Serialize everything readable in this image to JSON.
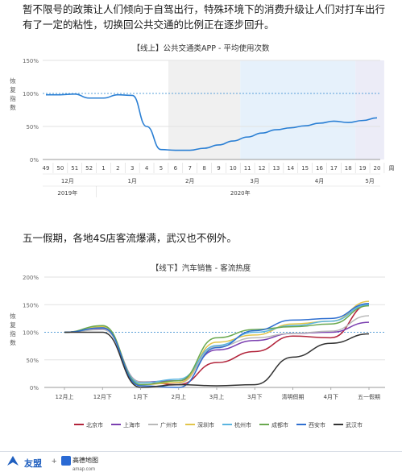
{
  "paragraphs": {
    "p1": "暂不限号的政策让人们倾向于自驾出行，特殊环境下的消费升级让人们对打车出行有了一定的粘性，切换回公共交通的比例正在逐步回升。",
    "p2": "五一假期，各地4S店客流爆满，武汉也不例外。"
  },
  "footer": {
    "brand1": "友盟",
    "plus": "+",
    "brand2": "高德地图",
    "brand2_sub": "amap.com"
  },
  "colors": {
    "line1": "#2a7fd4",
    "band_gray": "#f0f0f0",
    "band_blue": "#e6f1fb",
    "band_purple": "#ececf7",
    "ref_line": "#5aa0d8"
  },
  "chart_data": [
    {
      "type": "line",
      "title": "【线上】公共交通类APP - 平均使用次数",
      "ylabel": "恢复指数",
      "yticks": [
        "0%",
        "50%",
        "100%",
        "150%"
      ],
      "ylim": [
        0,
        150
      ],
      "reference_line": 100,
      "x": [
        "49",
        "50",
        "51",
        "52",
        "1",
        "2",
        "3",
        "4",
        "5",
        "6",
        "7",
        "8",
        "9",
        "10",
        "11",
        "12",
        "13",
        "14",
        "15",
        "16",
        "17",
        "18",
        "19",
        "20"
      ],
      "x_unit": "周",
      "month_labels": [
        {
          "label": "12月",
          "at": 1.5
        },
        {
          "label": "1月",
          "at": 6
        },
        {
          "label": "2月",
          "at": 10
        },
        {
          "label": "3月",
          "at": 14.5
        },
        {
          "label": "4月",
          "at": 19
        },
        {
          "label": "5月",
          "at": 22.5
        }
      ],
      "year_labels": [
        {
          "label": "2019年",
          "at": 1.5
        },
        {
          "label": "2020年",
          "at": 13.5
        }
      ],
      "bands": [
        {
          "from": 8.5,
          "to": 13.5,
          "color": "band_gray"
        },
        {
          "from": 13.5,
          "to": 21.5,
          "color": "band_blue"
        },
        {
          "from": 21.5,
          "to": 23.5,
          "color": "band_purple"
        }
      ],
      "series": [
        {
          "values": [
            98,
            98,
            99,
            93,
            93,
            98,
            97,
            50,
            15,
            14,
            14,
            17,
            22,
            28,
            34,
            40,
            45,
            48,
            51,
            55,
            58,
            56,
            59,
            63
          ]
        }
      ]
    },
    {
      "type": "line",
      "title": "【线下】汽车销售 - 客流热度",
      "ylabel": "恢复指数",
      "yticks": [
        "0%",
        "50%",
        "100%",
        "150%",
        "200%"
      ],
      "ylim": [
        0,
        200
      ],
      "reference_line": 100,
      "categories": [
        "12月上",
        "12月下",
        "1月下",
        "2月上",
        "3月上",
        "3月下",
        "清明假期",
        "4月下",
        "五一假期"
      ],
      "series": [
        {
          "name": "北京市",
          "color": "#b2233a",
          "values": [
            100,
            107,
            10,
            5,
            45,
            65,
            93,
            90,
            150
          ]
        },
        {
          "name": "上海市",
          "color": "#7b3fb0",
          "values": [
            100,
            107,
            10,
            12,
            68,
            85,
            98,
            100,
            118
          ]
        },
        {
          "name": "广州市",
          "color": "#b9b9b9",
          "values": [
            100,
            105,
            10,
            8,
            74,
            90,
            98,
            102,
            130
          ]
        },
        {
          "name": "深圳市",
          "color": "#e2c54a",
          "values": [
            100,
            110,
            5,
            9,
            82,
            95,
            115,
            120,
            156
          ]
        },
        {
          "name": "杭州市",
          "color": "#5ab4e0",
          "values": [
            100,
            108,
            8,
            15,
            76,
            100,
            112,
            120,
            150
          ]
        },
        {
          "name": "成都市",
          "color": "#6aa84f",
          "values": [
            100,
            112,
            5,
            12,
            90,
            105,
            110,
            115,
            148
          ]
        },
        {
          "name": "西安市",
          "color": "#2f6fd0",
          "values": [
            100,
            108,
            3,
            0,
            72,
            103,
            122,
            125,
            152
          ]
        },
        {
          "name": "武汉市",
          "color": "#333333",
          "values": [
            100,
            100,
            0,
            5,
            3,
            5,
            55,
            80,
            97
          ]
        }
      ]
    }
  ]
}
